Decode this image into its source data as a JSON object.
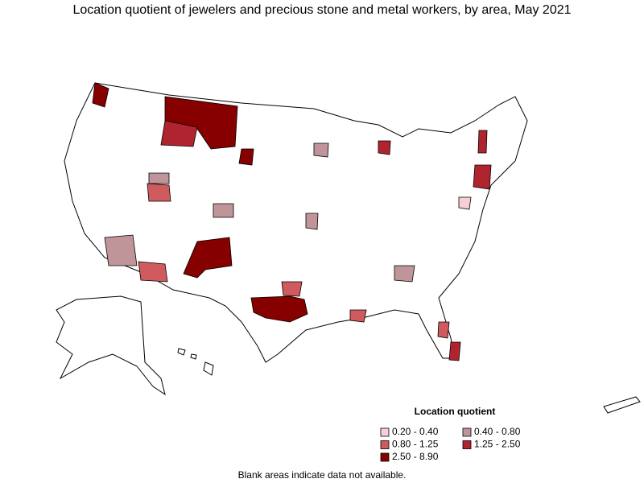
{
  "title": "Location quotient of jewelers and precious stone and metal workers, by area, May 2021",
  "legend": {
    "title": "Location quotient",
    "items": [
      {
        "label": "0.20 - 0.40",
        "color": "#f6d0d5"
      },
      {
        "label": "0.40 - 0.80",
        "color": "#c09599"
      },
      {
        "label": "0.80 - 1.25",
        "color": "#cf5b5e"
      },
      {
        "label": "1.25 - 2.50",
        "color": "#b0242f"
      },
      {
        "label": "2.50 - 8.90",
        "color": "#870000"
      }
    ]
  },
  "note": "Blank areas indicate data not available."
}
